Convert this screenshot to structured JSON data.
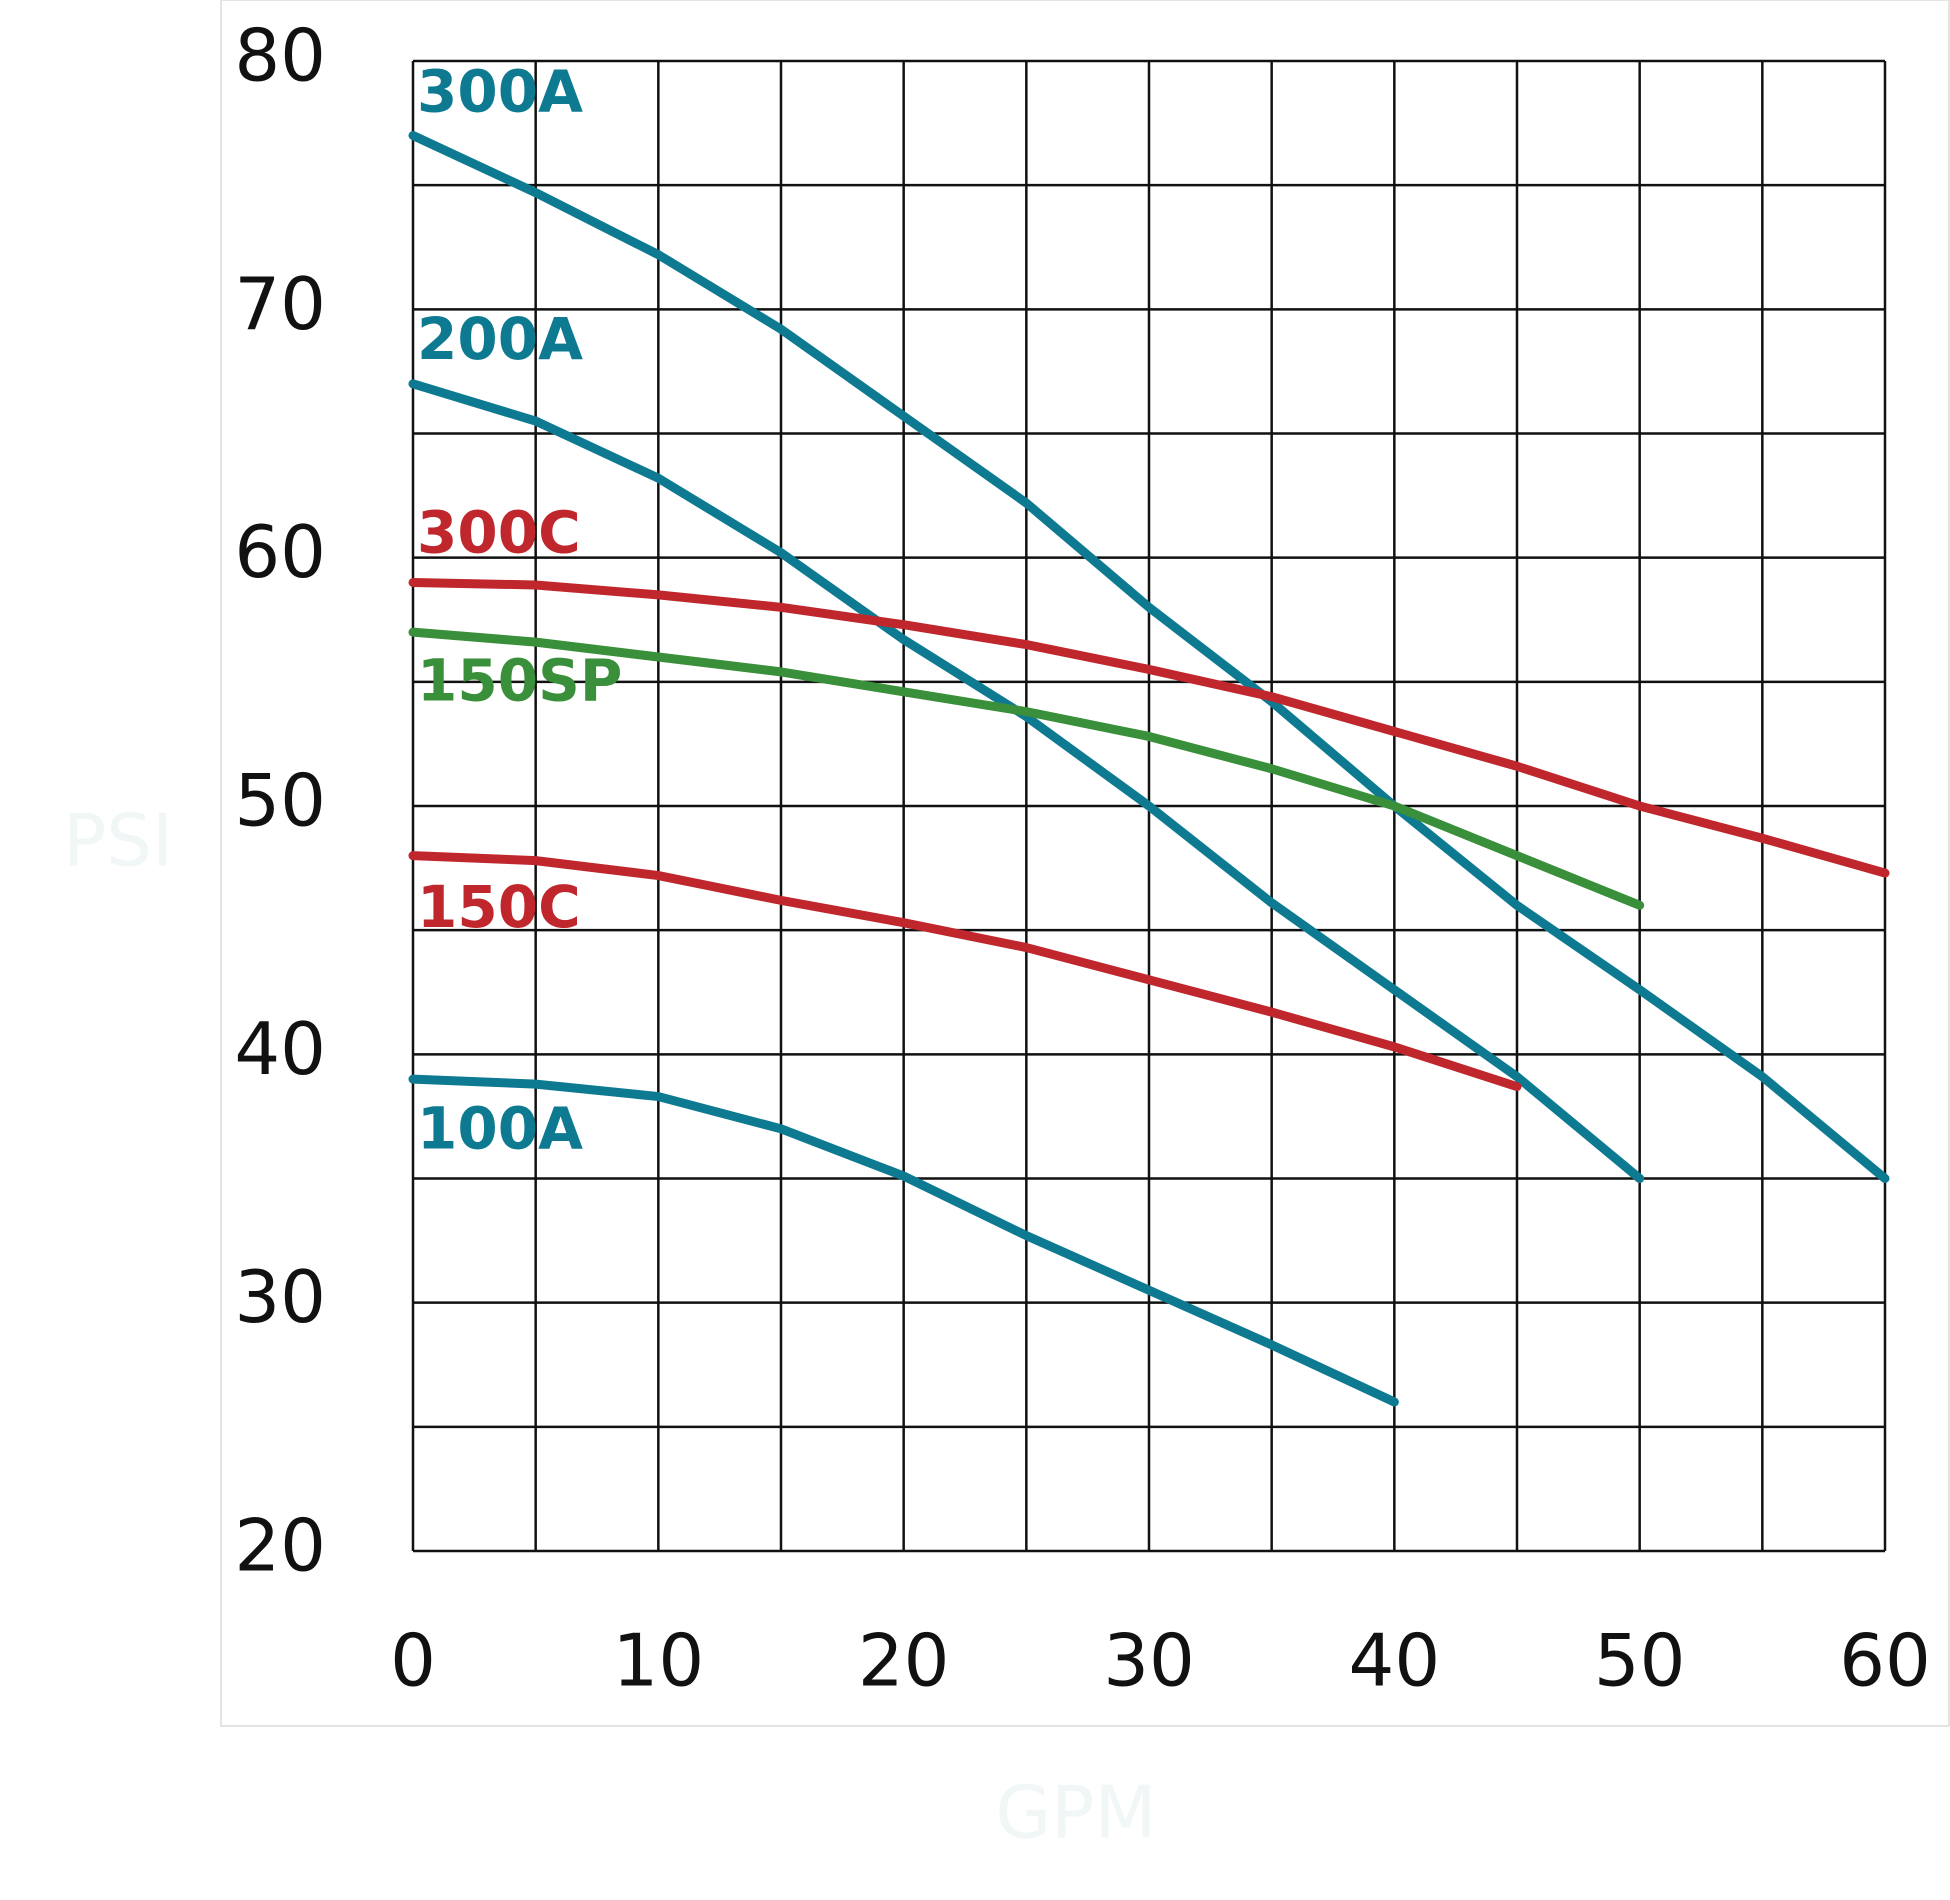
{
  "chart_data": {
    "type": "line",
    "x_label": "GPM",
    "y_label": "PSI",
    "x": [
      0,
      5,
      10,
      15,
      20,
      25,
      30,
      35,
      40,
      45,
      50,
      55,
      60
    ],
    "series": [
      {
        "name": "300A",
        "color": "#0e7a91",
        "values": [
          77,
          74.7,
          72.2,
          69.2,
          65.7,
          62.2,
          58,
          54.2,
          50,
          46,
          42.6,
          39.1,
          35
        ]
      },
      {
        "name": "200A",
        "color": "#0e7a91",
        "values": [
          67,
          65.5,
          63.2,
          60.2,
          56.7,
          53.6,
          50,
          46.1,
          42.6,
          39.1,
          35,
          null,
          null
        ]
      },
      {
        "name": "300C",
        "color": "#c0272d",
        "values": [
          59,
          58.9,
          58.5,
          58,
          57.3,
          56.5,
          55.5,
          54.4,
          53,
          51.6,
          50,
          48.7,
          47.3
        ]
      },
      {
        "name": "150SP",
        "color": "#3a8f3a",
        "values": [
          57,
          56.6,
          56,
          55.4,
          54.6,
          53.8,
          52.8,
          51.5,
          50,
          48,
          46,
          null,
          null
        ]
      },
      {
        "name": "150C",
        "color": "#c0272d",
        "values": [
          48,
          47.8,
          47.2,
          46.2,
          45.3,
          44.3,
          43,
          41.7,
          40.3,
          38.7,
          null,
          null,
          null
        ]
      },
      {
        "name": "100A",
        "color": "#0e7a91",
        "values": [
          39,
          38.8,
          38.3,
          37,
          35.1,
          32.7,
          30.5,
          28.3,
          26,
          null,
          null,
          null,
          null
        ]
      }
    ],
    "xlim": [
      0,
      60
    ],
    "ylim": [
      20,
      80
    ],
    "xticks": [
      0,
      10,
      20,
      30,
      40,
      50,
      60
    ],
    "yticks": [
      20,
      30,
      40,
      50,
      60,
      70,
      80
    ],
    "xgrid": [
      5,
      15,
      25,
      35,
      45,
      55
    ],
    "ygrid": [
      25,
      35,
      45,
      55,
      65,
      75
    ],
    "grid": true
  }
}
